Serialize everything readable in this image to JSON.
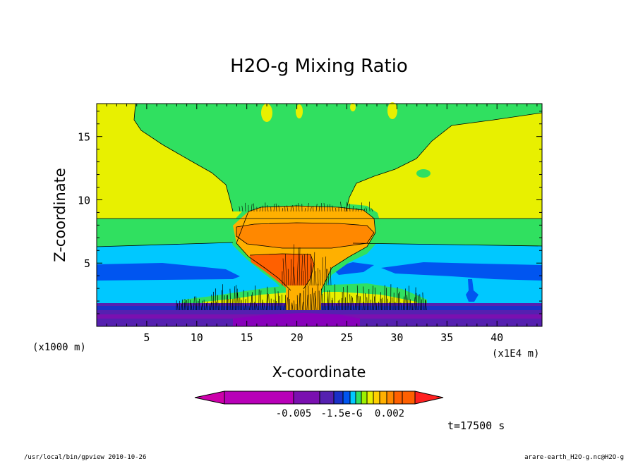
{
  "chart_data": {
    "type": "heatmap",
    "title": "H2O-g Mixing Ratio",
    "xlabel": "X-coordinate",
    "ylabel": "Z-coordinate",
    "x_unit_left": "(x1000 m)",
    "x_unit_right": "(x1E4 m)",
    "xlim": [
      0,
      44.5
    ],
    "ylim": [
      0,
      17.6
    ],
    "x_ticks": [
      5,
      10,
      15,
      20,
      25,
      30,
      35,
      40
    ],
    "x_tick_labels": [
      "5",
      "10",
      "15",
      "20",
      "25",
      "30",
      "35",
      "40"
    ],
    "y_ticks": [
      5,
      10,
      15
    ],
    "y_tick_labels": [
      "5",
      "10",
      "15"
    ],
    "colorbar": {
      "labels": [
        "-0.005",
        "-1.5e-G",
        "0.002"
      ],
      "colors": [
        "#cc00aa",
        "#b800b8",
        "#9900bb",
        "#7a10b0",
        "#5520b0",
        "#1a30c8",
        "#0055f0",
        "#00c8ff",
        "#30e060",
        "#9ef000",
        "#e8f000",
        "#ffd000",
        "#ffb000",
        "#ff8800",
        "#ff6000",
        "#ff2020"
      ]
    },
    "fields": {
      "bottom_band_colors": [
        "#8800bb",
        "#5520b0",
        "#1a30c8",
        "#7a10b0"
      ],
      "layer_colors": [
        "#0055f0",
        "#00c8ff",
        "#30e060",
        "#e8f000"
      ],
      "plume_colors": [
        "#30e060",
        "#ffb000",
        "#ff8800",
        "#ff6000"
      ]
    },
    "time_label": "t=17500 s"
  },
  "footer": {
    "left": "/usr/local/bin/gpview  2010-10-26",
    "right": "arare-earth_H2O-g.nc@H2O-g"
  }
}
